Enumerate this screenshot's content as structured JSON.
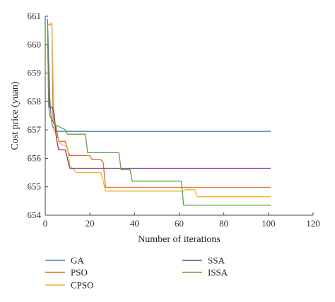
{
  "chart_data": {
    "type": "line",
    "title": "",
    "xlabel": "Number of iterations",
    "ylabel": "Cost price (yuan)",
    "xlim": [
      0,
      120
    ],
    "ylim": [
      654,
      661
    ],
    "xticks": [
      "0",
      "20",
      "40",
      "60",
      "80",
      "100",
      "120"
    ],
    "yticks": [
      "654",
      "655",
      "656",
      "657",
      "658",
      "659",
      "660",
      "661"
    ],
    "grid": false,
    "legend_placement": "bottom",
    "series": [
      {
        "name": "GA",
        "color": "#4a7ebb",
        "points": [
          [
            1,
            660.9
          ],
          [
            1.5,
            659.6
          ],
          [
            2,
            658.2
          ],
          [
            2.5,
            657.6
          ],
          [
            3,
            657.2
          ],
          [
            4,
            657.0
          ],
          [
            5,
            656.95
          ],
          [
            101,
            656.95
          ]
        ]
      },
      {
        "name": "PSO",
        "color": "#e46c2a",
        "points": [
          [
            1,
            660.7
          ],
          [
            2,
            660.7
          ],
          [
            3,
            660.7
          ],
          [
            3.5,
            657.3
          ],
          [
            5,
            657.1
          ],
          [
            6,
            656.6
          ],
          [
            9,
            656.6
          ],
          [
            10,
            656.3
          ],
          [
            11,
            656.1
          ],
          [
            20,
            656.1
          ],
          [
            21,
            655.95
          ],
          [
            25,
            655.95
          ],
          [
            26,
            655.85
          ],
          [
            27,
            654.98
          ],
          [
            101,
            654.98
          ]
        ]
      },
      {
        "name": "CPSO",
        "color": "#f0b428",
        "points": [
          [
            2,
            660.75
          ],
          [
            3,
            660.75
          ],
          [
            4,
            657.0
          ],
          [
            5,
            656.8
          ],
          [
            7,
            656.5
          ],
          [
            10,
            656.4
          ],
          [
            11,
            655.75
          ],
          [
            14,
            655.5
          ],
          [
            25,
            655.5
          ],
          [
            27,
            654.85
          ],
          [
            62,
            654.85
          ],
          [
            63,
            654.9
          ],
          [
            67,
            654.9
          ],
          [
            68,
            654.65
          ],
          [
            101,
            654.65
          ]
        ]
      },
      {
        "name": "SSA",
        "color": "#7a3c8c",
        "points": [
          [
            1,
            660.0
          ],
          [
            2,
            657.8
          ],
          [
            3,
            657.8
          ],
          [
            4,
            657.6
          ],
          [
            5,
            656.7
          ],
          [
            6,
            656.3
          ],
          [
            9,
            656.3
          ],
          [
            11,
            655.65
          ],
          [
            101,
            655.65
          ]
        ]
      },
      {
        "name": "ISSA",
        "color": "#5fa33a",
        "points": [
          [
            1,
            660.7
          ],
          [
            1.5,
            657.9
          ],
          [
            2,
            657.5
          ],
          [
            4,
            657.2
          ],
          [
            9,
            657.0
          ],
          [
            10,
            656.85
          ],
          [
            18,
            656.85
          ],
          [
            19,
            656.2
          ],
          [
            33,
            656.2
          ],
          [
            34,
            655.6
          ],
          [
            38,
            655.6
          ],
          [
            39,
            655.2
          ],
          [
            61,
            655.2
          ],
          [
            62,
            654.35
          ],
          [
            101,
            654.35
          ]
        ]
      }
    ]
  }
}
